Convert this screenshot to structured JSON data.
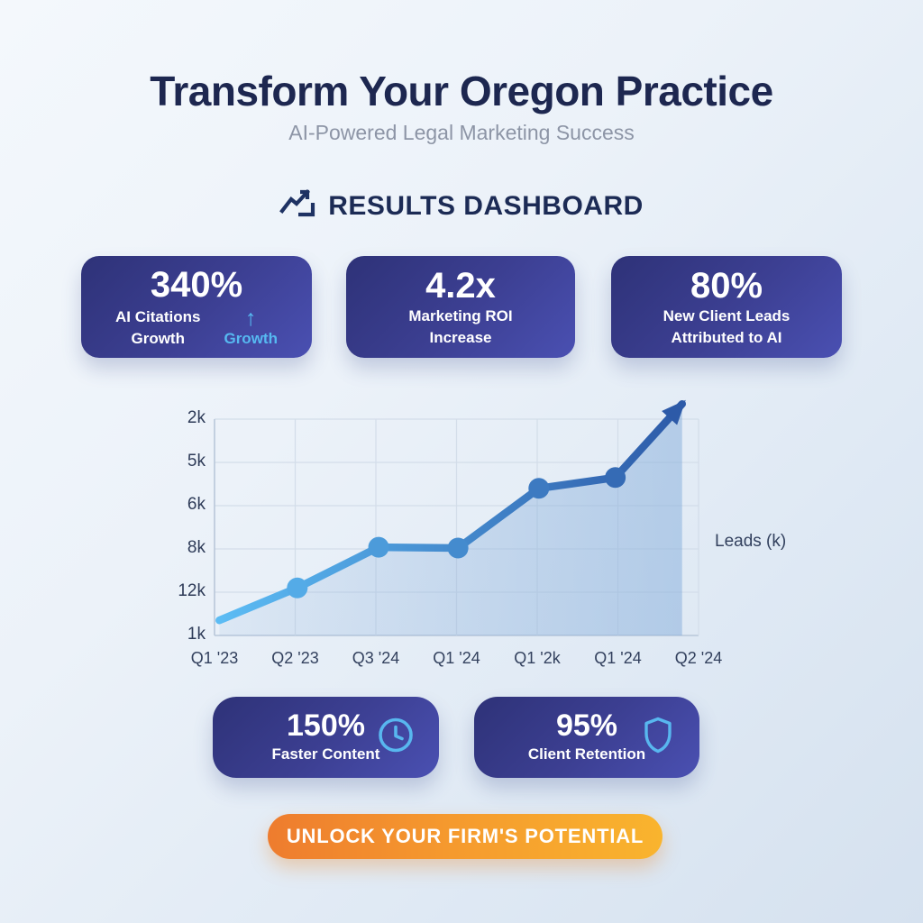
{
  "page": {
    "title": "Transform Your Oregon Practice",
    "subtitle": "AI-Powered Legal Marketing Success"
  },
  "dashboard": {
    "heading": "RESULTS DASHBOARD",
    "icon": "trending-up-icon"
  },
  "stat_cards_top": [
    {
      "value": "340%",
      "label_line1": "AI Citations",
      "label_line2": "Growth",
      "secondary_icon": "arrow-up-icon",
      "secondary_icon_glyph": "↑",
      "secondary_label": "Growth"
    },
    {
      "value": "4.2x",
      "label_line1": "Marketing ROI",
      "label_line2": "Increase"
    },
    {
      "value": "80%",
      "label_line1": "New Client Leads",
      "label_line2": "Attributed to AI"
    }
  ],
  "chart_data": {
    "type": "line",
    "title": "",
    "xlabel": "",
    "right_axis_label": "Leads (k)",
    "grid": true,
    "legend_position": "none",
    "x_ticks": [
      "Q1 '23",
      "Q2 '23",
      "Q3 '24",
      "Q1 '24",
      "Q1 '2k",
      "Q1 '24",
      "Q2 '24"
    ],
    "y_ticks_top_to_bottom": [
      "2k",
      "5k",
      "6k",
      "8k",
      "12k",
      "1k"
    ],
    "series": [
      {
        "name": "Leads",
        "ends_in_arrow": true,
        "points": [
          {
            "x_label": "Q1 '23",
            "xf": 0.01,
            "yf": 0.93,
            "dot": false,
            "nearest_y_tick": "1k"
          },
          {
            "x_label": "Q2 '23",
            "xf": 0.171,
            "yf": 0.78,
            "dot": true,
            "nearest_y_tick": "12k"
          },
          {
            "x_label": "Q3 '24",
            "xf": 0.339,
            "yf": 0.592,
            "dot": true,
            "nearest_y_tick": "8k"
          },
          {
            "x_label": "Q1 '24",
            "xf": 0.503,
            "yf": 0.596,
            "dot": true,
            "nearest_y_tick": "8k"
          },
          {
            "x_label": "Q1 '2k",
            "xf": 0.67,
            "yf": 0.32,
            "dot": true,
            "nearest_y_tick": "5k"
          },
          {
            "x_label": "Q1 '24",
            "xf": 0.828,
            "yf": 0.27,
            "dot": true,
            "nearest_y_tick": "5k"
          },
          {
            "x_label": "Q2 '24",
            "xf": 0.966,
            "yf": -0.07,
            "dot": false,
            "nearest_y_tick": "2k"
          }
        ]
      }
    ]
  },
  "stat_cards_bottom": [
    {
      "value": "150%",
      "label": "Faster Content",
      "icon": "clock-icon"
    },
    {
      "value": "95%",
      "label": "Client Retention",
      "icon": "shield-icon"
    }
  ],
  "cta": {
    "label": "UNLOCK YOUR FIRM'S POTENTIAL"
  },
  "colors": {
    "heading_navy": "#1c2b55",
    "title_navy": "#1d2750",
    "subtitle_gray": "#8d95a6",
    "accent_light_blue": "#56b9f1",
    "card_gradient_start": "#2e3278",
    "card_gradient_end": "#4a50b2",
    "line_gradient_start": "#5cbcf4",
    "line_gradient_end": "#2d5aa8",
    "area_fill": "#7fa9d9",
    "grid_line": "#d3dde9",
    "axis_line": "#b9c7d9",
    "cta_gradient_start": "#ee7c2e",
    "cta_gradient_end": "#f9b42e"
  }
}
